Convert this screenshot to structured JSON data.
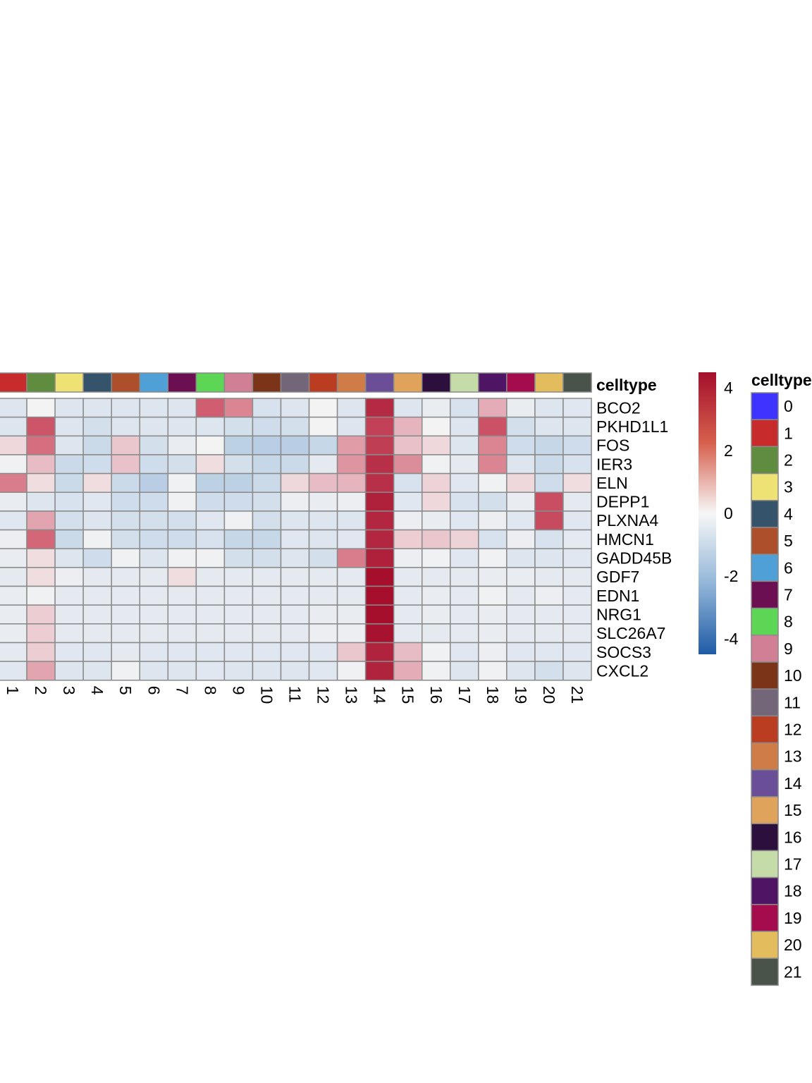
{
  "chart_data": {
    "type": "heatmap",
    "columns": [
      "1",
      "2",
      "3",
      "4",
      "5",
      "6",
      "7",
      "8",
      "9",
      "10",
      "11",
      "12",
      "13",
      "14",
      "15",
      "16",
      "17",
      "18",
      "19",
      "20",
      "21"
    ],
    "rows": [
      "BCO2",
      "PKHD1L1",
      "FOS",
      "IER3",
      "ELN",
      "DEPP1",
      "PLXNA4",
      "HMCN1",
      "GADD45B",
      "GDF7",
      "EDN1",
      "NRG1",
      "SLC26A7",
      "SOCS3",
      "CXCL2"
    ],
    "values": [
      [
        -0.6,
        0.0,
        -0.6,
        -0.6,
        -0.6,
        -0.6,
        -0.6,
        2.2,
        1.7,
        -0.7,
        -0.6,
        0.0,
        -0.6,
        3.7,
        -0.6,
        -0.3,
        -0.7,
        1.2,
        -0.3,
        -0.6,
        -0.5
      ],
      [
        -0.6,
        2.4,
        -0.6,
        -0.8,
        -0.6,
        -0.6,
        -0.6,
        -0.6,
        -0.8,
        -0.9,
        -0.8,
        0.0,
        -0.6,
        3.0,
        1.1,
        0.0,
        -0.6,
        2.5,
        -0.8,
        -0.6,
        -0.6
      ],
      [
        0.5,
        2.0,
        -0.6,
        -1.0,
        0.8,
        -0.8,
        -0.3,
        0.0,
        -1.3,
        -1.4,
        -1.4,
        -1.1,
        1.4,
        3.1,
        0.9,
        0.5,
        -0.6,
        1.7,
        -0.9,
        -1.1,
        -0.9
      ],
      [
        -0.1,
        1.0,
        -1.0,
        -0.9,
        0.9,
        -0.9,
        -0.8,
        0.4,
        -0.8,
        -1.1,
        -1.0,
        -0.4,
        1.5,
        3.5,
        1.6,
        -0.1,
        -0.4,
        1.7,
        -0.6,
        -1.0,
        -0.7
      ],
      [
        1.8,
        0.4,
        -1.0,
        0.4,
        -1.0,
        -1.4,
        -0.1,
        -1.3,
        -1.3,
        -1.0,
        0.5,
        1.0,
        1.1,
        3.5,
        -0.7,
        0.6,
        -0.5,
        -0.1,
        0.5,
        -0.9,
        0.4
      ],
      [
        -0.3,
        -0.6,
        -0.7,
        -0.5,
        -0.9,
        -0.9,
        -0.1,
        -0.9,
        -0.9,
        -0.8,
        -0.2,
        -0.3,
        -0.2,
        4.0,
        -0.5,
        0.5,
        -0.7,
        -0.8,
        -0.3,
        2.6,
        -0.4
      ],
      [
        -0.5,
        1.3,
        -0.8,
        -0.6,
        -0.8,
        -0.8,
        -0.8,
        -0.5,
        -0.1,
        -0.8,
        -0.6,
        -0.6,
        -0.6,
        3.8,
        -0.2,
        -0.3,
        -0.5,
        -0.2,
        -0.5,
        2.7,
        -0.5
      ],
      [
        -0.2,
        2.1,
        -1.0,
        -0.1,
        -0.8,
        -0.9,
        -0.9,
        -0.7,
        -1.1,
        -1.1,
        -0.5,
        -0.6,
        -0.5,
        3.8,
        0.7,
        0.8,
        0.6,
        -0.7,
        -0.2,
        -0.7,
        -0.4
      ],
      [
        -0.3,
        0.4,
        -0.6,
        -0.9,
        -0.1,
        -0.6,
        -0.1,
        -0.1,
        -0.8,
        -0.8,
        -0.6,
        -0.8,
        1.8,
        4.0,
        -0.2,
        -0.1,
        -0.5,
        -0.1,
        -0.6,
        -0.6,
        -0.5
      ],
      [
        -0.4,
        0.4,
        -0.2,
        -0.4,
        -0.4,
        -0.4,
        0.4,
        -0.4,
        -0.4,
        -0.4,
        -0.4,
        -0.4,
        -0.4,
        4.5,
        -0.4,
        -0.4,
        -0.4,
        -0.3,
        -0.3,
        -0.4,
        -0.4
      ],
      [
        -0.3,
        -0.1,
        -0.4,
        -0.4,
        -0.4,
        -0.4,
        -0.4,
        -0.4,
        -0.4,
        -0.4,
        -0.4,
        -0.4,
        -0.4,
        4.5,
        -0.4,
        -0.3,
        -0.4,
        -0.1,
        -0.4,
        -0.2,
        -0.4
      ],
      [
        -0.3,
        0.7,
        -0.4,
        -0.4,
        -0.4,
        -0.4,
        -0.4,
        -0.4,
        -0.4,
        -0.4,
        -0.4,
        -0.3,
        -0.3,
        4.5,
        -0.4,
        -0.3,
        -0.4,
        -0.3,
        -0.4,
        -0.4,
        -0.4
      ],
      [
        -0.3,
        0.7,
        -0.4,
        -0.4,
        -0.4,
        -0.4,
        -0.4,
        -0.4,
        -0.4,
        -0.4,
        -0.4,
        -0.2,
        -0.2,
        4.4,
        -0.4,
        -0.4,
        -0.4,
        -0.3,
        -0.4,
        -0.4,
        -0.4
      ],
      [
        -0.4,
        0.7,
        -0.5,
        -0.5,
        -0.4,
        -0.5,
        -0.5,
        -0.5,
        -0.5,
        -0.5,
        -0.5,
        -0.5,
        0.8,
        3.9,
        1.0,
        -0.1,
        -0.5,
        -0.2,
        -0.5,
        -0.5,
        -0.5
      ],
      [
        -0.5,
        1.3,
        -0.6,
        -0.6,
        -0.1,
        -0.6,
        -0.6,
        -0.5,
        -0.6,
        -0.6,
        -0.6,
        -0.5,
        -0.1,
        3.9,
        1.2,
        -0.1,
        -0.6,
        -0.1,
        -0.6,
        -0.8,
        -0.6
      ]
    ],
    "column_annotation": {
      "label": "celltype",
      "colors": [
        "#c82b2b",
        "#5f8c3e",
        "#efe274",
        "#36536c",
        "#ae4f2b",
        "#4fa0d7",
        "#6b0f52",
        "#5dd655",
        "#d07f94",
        "#7c3419",
        "#736678",
        "#bb3d21",
        "#d07c46",
        "#6a4f98",
        "#e0a35c",
        "#2c0f3c",
        "#c6dca8",
        "#4e1565",
        "#a50c4d",
        "#e3bc5d",
        "#4a534a"
      ]
    },
    "colorbar": {
      "ticks": [
        "4",
        "2",
        "0",
        "-2",
        "-4"
      ],
      "range": [
        -4.5,
        4.5
      ],
      "high_color": "#a50f2c",
      "mid_color": "#f7f7f7",
      "low_color": "#1f5ba6"
    },
    "legend": {
      "title": "celltype",
      "items": [
        {
          "label": "0",
          "color": "#3f33ff"
        },
        {
          "label": "1",
          "color": "#c82b2b"
        },
        {
          "label": "2",
          "color": "#5f8c3e"
        },
        {
          "label": "3",
          "color": "#efe274"
        },
        {
          "label": "4",
          "color": "#36536c"
        },
        {
          "label": "5",
          "color": "#ae4f2b"
        },
        {
          "label": "6",
          "color": "#4fa0d7"
        },
        {
          "label": "7",
          "color": "#6b0f52"
        },
        {
          "label": "8",
          "color": "#5dd655"
        },
        {
          "label": "9",
          "color": "#d07f94"
        },
        {
          "label": "10",
          "color": "#7c3419"
        },
        {
          "label": "11",
          "color": "#736678"
        },
        {
          "label": "12",
          "color": "#bb3d21"
        },
        {
          "label": "13",
          "color": "#d07c46"
        },
        {
          "label": "14",
          "color": "#6a4f98"
        },
        {
          "label": "15",
          "color": "#e0a35c"
        },
        {
          "label": "16",
          "color": "#2c0f3c"
        },
        {
          "label": "17",
          "color": "#c6dca8"
        },
        {
          "label": "18",
          "color": "#4e1565"
        },
        {
          "label": "19",
          "color": "#a50c4d"
        },
        {
          "label": "20",
          "color": "#e3bc5d"
        },
        {
          "label": "21",
          "color": "#4a534a"
        }
      ]
    }
  }
}
